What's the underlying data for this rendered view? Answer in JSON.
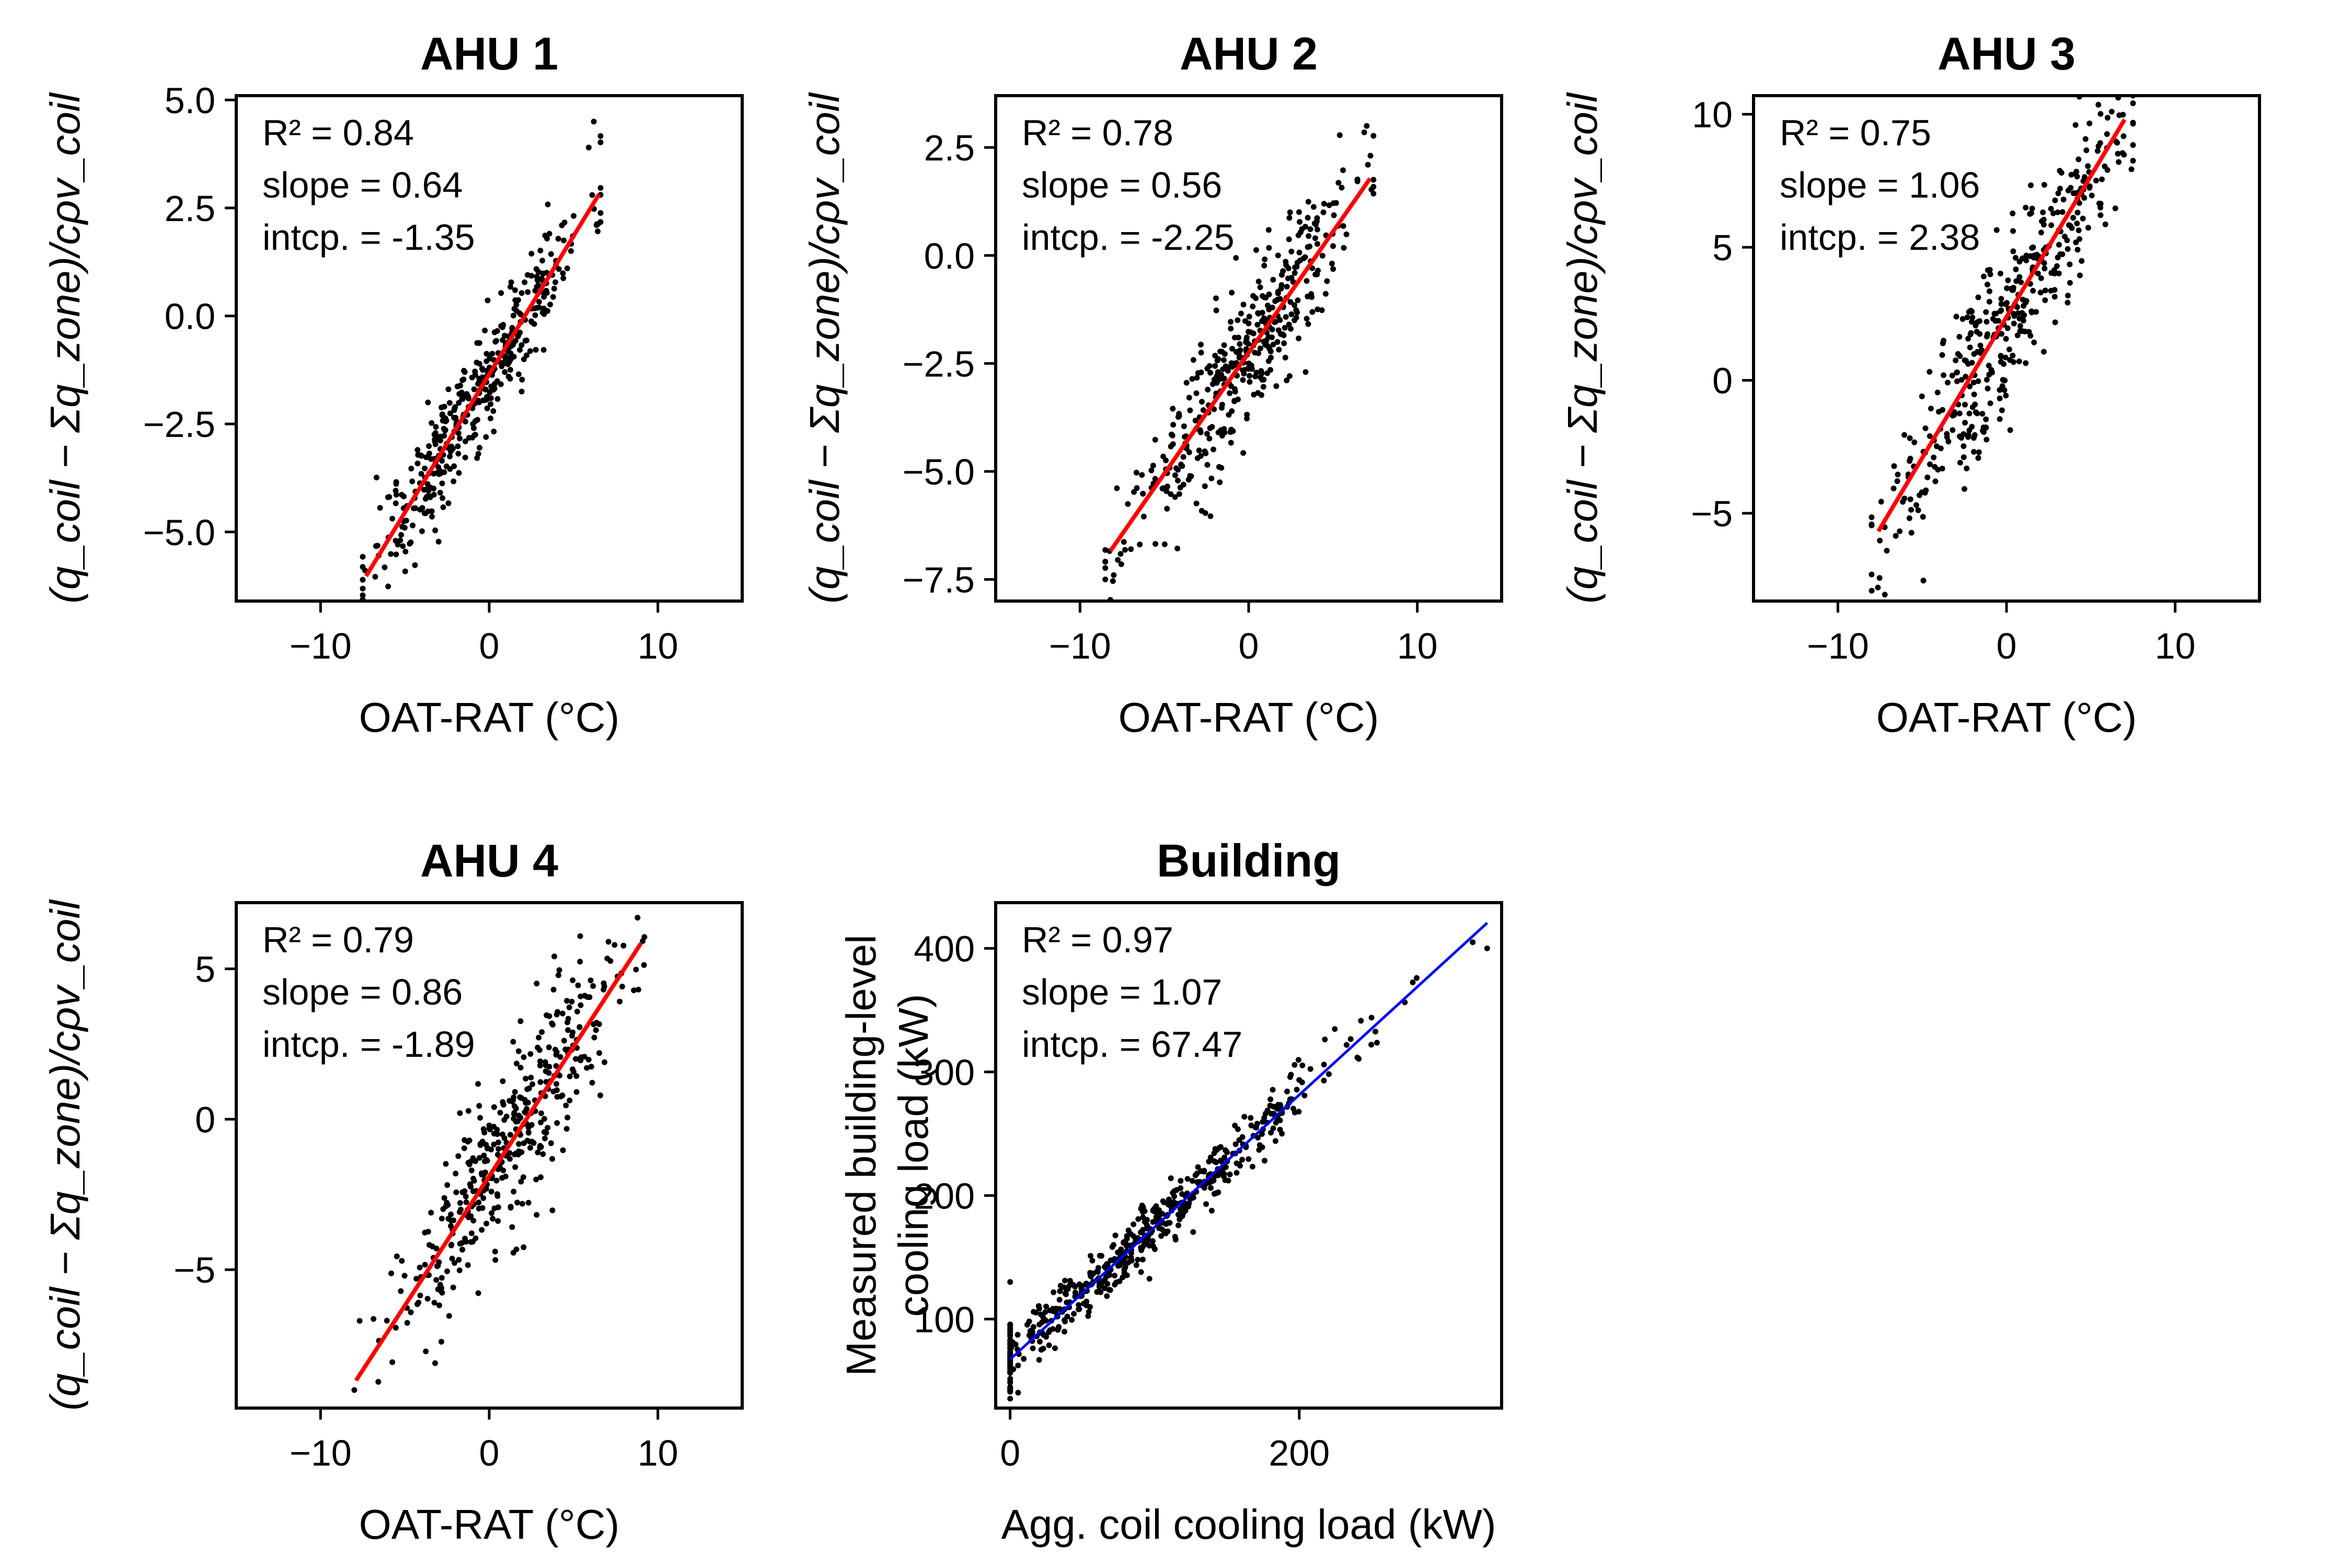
{
  "chart_data": [
    {
      "type": "scatter",
      "title": "AHU 1",
      "xlabel": "OAT-RAT (°C)",
      "ylabel": "(q_coil − Σq_zone)/cρv_coil",
      "xlim": [
        -15,
        15
      ],
      "ylim": [
        -6.6,
        5.1
      ],
      "xticks": [
        -10,
        0,
        10
      ],
      "xtick_labels": [
        "−10",
        "0",
        "10"
      ],
      "yticks": [
        -5,
        -2.5,
        0,
        2.5,
        5
      ],
      "ytick_labels": [
        "−5.0",
        "−2.5",
        "0.0",
        "2.5",
        "5.0"
      ],
      "annotation": {
        "r2": "R² = 0.84",
        "slope": "slope = 0.64",
        "intercept": "intcp. = -1.35"
      },
      "fit": {
        "slope": 0.64,
        "intercept": -1.35,
        "x_range": [
          -7.3,
          6.5
        ],
        "color": "#ff0000"
      },
      "points": {
        "n": 420,
        "x_center": -0.8,
        "x_spread": 3.3,
        "x_range": [
          -7.5,
          6.6
        ],
        "resid_sd": 0.65,
        "seed": 11,
        "extra": [
          [
            6.2,
            4.5
          ],
          [
            5.9,
            3.9
          ]
        ]
      }
    },
    {
      "type": "scatter",
      "title": "AHU 2",
      "xlabel": "OAT-RAT (°C)",
      "ylabel": "(q_coil − Σq_zone)/cρv_coil",
      "xlim": [
        -15,
        15
      ],
      "ylim": [
        -8.0,
        3.7
      ],
      "xticks": [
        -10,
        0,
        10
      ],
      "xtick_labels": [
        "−10",
        "0",
        "10"
      ],
      "yticks": [
        -7.5,
        -5,
        -2.5,
        0,
        2.5
      ],
      "ytick_labels": [
        "−7.5",
        "−5.0",
        "−2.5",
        "0.0",
        "2.5"
      ],
      "annotation": {
        "r2": "R² = 0.78",
        "slope": "slope = 0.56",
        "intercept": "intcp. = -2.25"
      },
      "fit": {
        "slope": 0.56,
        "intercept": -2.25,
        "x_range": [
          -8.2,
          7.2
        ],
        "color": "#ff0000"
      },
      "points": {
        "n": 420,
        "x_center": -0.6,
        "x_spread": 3.4,
        "x_range": [
          -8.5,
          7.4
        ],
        "resid_sd": 0.85,
        "seed": 23,
        "extra": [
          [
            7.0,
            3.0
          ],
          [
            -8.0,
            -7.4
          ]
        ]
      }
    },
    {
      "type": "scatter",
      "title": "AHU 3",
      "xlabel": "OAT-RAT (°C)",
      "ylabel": "(q_coil − Σq_zone)/cρv_coil",
      "xlim": [
        -15,
        15
      ],
      "ylim": [
        -8.3,
        10.7
      ],
      "xticks": [
        -10,
        0,
        10
      ],
      "xtick_labels": [
        "−10",
        "0",
        "10"
      ],
      "yticks": [
        -5,
        0,
        5,
        10
      ],
      "ytick_labels": [
        "−5",
        "0",
        "5",
        "10"
      ],
      "annotation": {
        "r2": "R² = 0.75",
        "slope": "slope = 1.06",
        "intercept": "intcp. = 2.38"
      },
      "fit": {
        "slope": 1.06,
        "intercept": 2.38,
        "x_range": [
          -7.6,
          7.0
        ],
        "color": "#ff0000"
      },
      "points": {
        "n": 420,
        "x_center": 0.2,
        "x_spread": 3.6,
        "x_range": [
          -8.0,
          7.5
        ],
        "resid_sd": 1.6,
        "seed": 37,
        "extra": [
          [
            -8.0,
            -7.3
          ]
        ]
      }
    },
    {
      "type": "scatter",
      "title": "AHU 4",
      "xlabel": "OAT-RAT (°C)",
      "ylabel": "(q_coil − Σq_zone)/cρv_coil",
      "xlim": [
        -15,
        15
      ],
      "ylim": [
        -9.6,
        7.2
      ],
      "xticks": [
        -10,
        0,
        10
      ],
      "xtick_labels": [
        "−10",
        "0",
        "10"
      ],
      "yticks": [
        -5,
        0,
        5
      ],
      "ytick_labels": [
        "−5",
        "0",
        "5"
      ],
      "annotation": {
        "r2": "R² = 0.79",
        "slope": "slope = 0.86",
        "intercept": "intcp. = -1.89"
      },
      "fit": {
        "slope": 0.86,
        "intercept": -1.89,
        "x_range": [
          -7.9,
          9.0
        ],
        "color": "#ff0000"
      },
      "points": {
        "n": 420,
        "x_center": 1.6,
        "x_spread": 3.7,
        "x_range": [
          -8.2,
          9.2
        ],
        "resid_sd": 1.45,
        "seed": 53,
        "extra": [
          [
            -8.0,
            -9.0
          ]
        ]
      }
    },
    {
      "type": "scatter",
      "title": "Building",
      "xlabel": "Agg. coil cooling load (kW)",
      "ylabel": [
        "Measured building-level",
        "cooling load (kW)"
      ],
      "xlim": [
        -10,
        340
      ],
      "ylim": [
        28,
        437
      ],
      "xticks": [
        0,
        200
      ],
      "xtick_labels": [
        "0",
        "200"
      ],
      "yticks": [
        100,
        200,
        300,
        400
      ],
      "ytick_labels": [
        "100",
        "200",
        "300",
        "400"
      ],
      "annotation": {
        "r2": "R² = 0.97",
        "slope": "slope = 1.07",
        "intercept": "intcp. = 67.47"
      },
      "fit": {
        "slope": 1.07,
        "intercept": 67.47,
        "x_range": [
          0,
          330
        ],
        "color": "#0000ff"
      },
      "points": {
        "n": 520,
        "x_center": 90,
        "x_spread": 70,
        "x_range": [
          0,
          330
        ],
        "resid_sd": 12,
        "seed": 71,
        "extra": [
          [
            0,
            45
          ],
          [
            0,
            130
          ],
          [
            330,
            400
          ],
          [
            320,
            405
          ]
        ]
      }
    }
  ]
}
